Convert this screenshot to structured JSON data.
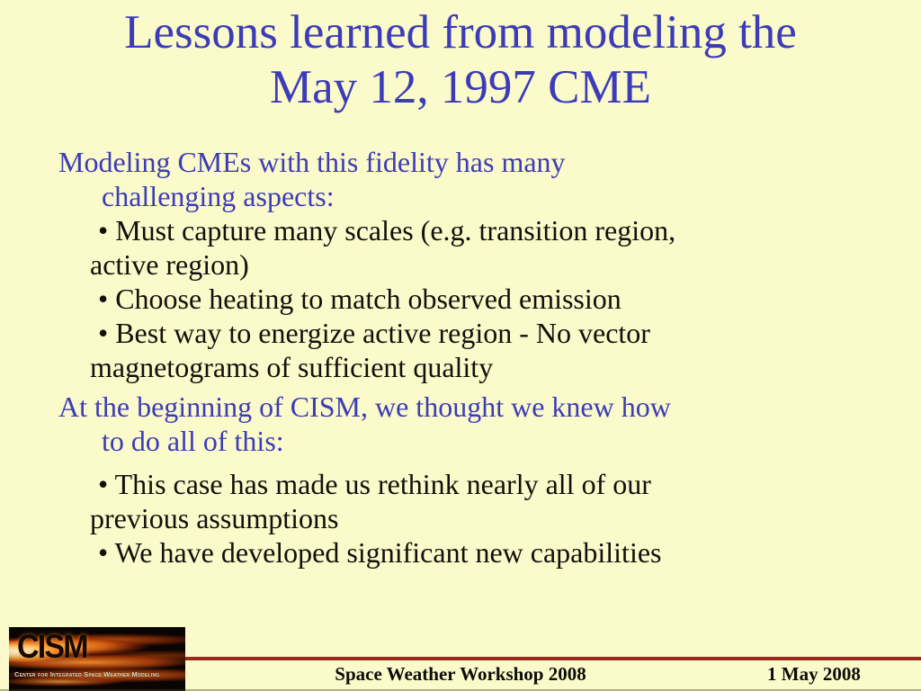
{
  "colors": {
    "bg": "#fbfacb",
    "blue": "#3c3cb8",
    "ink": "#12100a",
    "red": "#9b2b20"
  },
  "title": {
    "line1": "Lessons learned from modeling the",
    "line2": "May 12, 1997 CME"
  },
  "body": {
    "paragraphs": [
      {
        "color": "blue",
        "lines": [
          "Modeling CMEs with this fidelity has many",
          "challenging aspects:"
        ]
      },
      {
        "color": "black",
        "lines": [
          "• Must capture many scales (e.g. transition region,",
          "active region)",
          "• Choose heating to match observed emission",
          "• Best way to energize active region - No vector",
          "magnetograms of sufficient quality"
        ]
      },
      {
        "color": "blue",
        "lines": [
          "At the beginning of CISM, we thought we knew how",
          "to do all of this:"
        ]
      },
      {
        "color": "black",
        "lines": [
          "• This case has made us rethink nearly all of our",
          "previous assumptions",
          "• We have developed significant new capabilities"
        ]
      }
    ]
  },
  "footer": {
    "logo": {
      "acronym": "CISM",
      "caption": "Center for Integrated Space Weather Modeling"
    },
    "conference": "Space Weather Workshop 2008",
    "date": "1 May 2008"
  }
}
